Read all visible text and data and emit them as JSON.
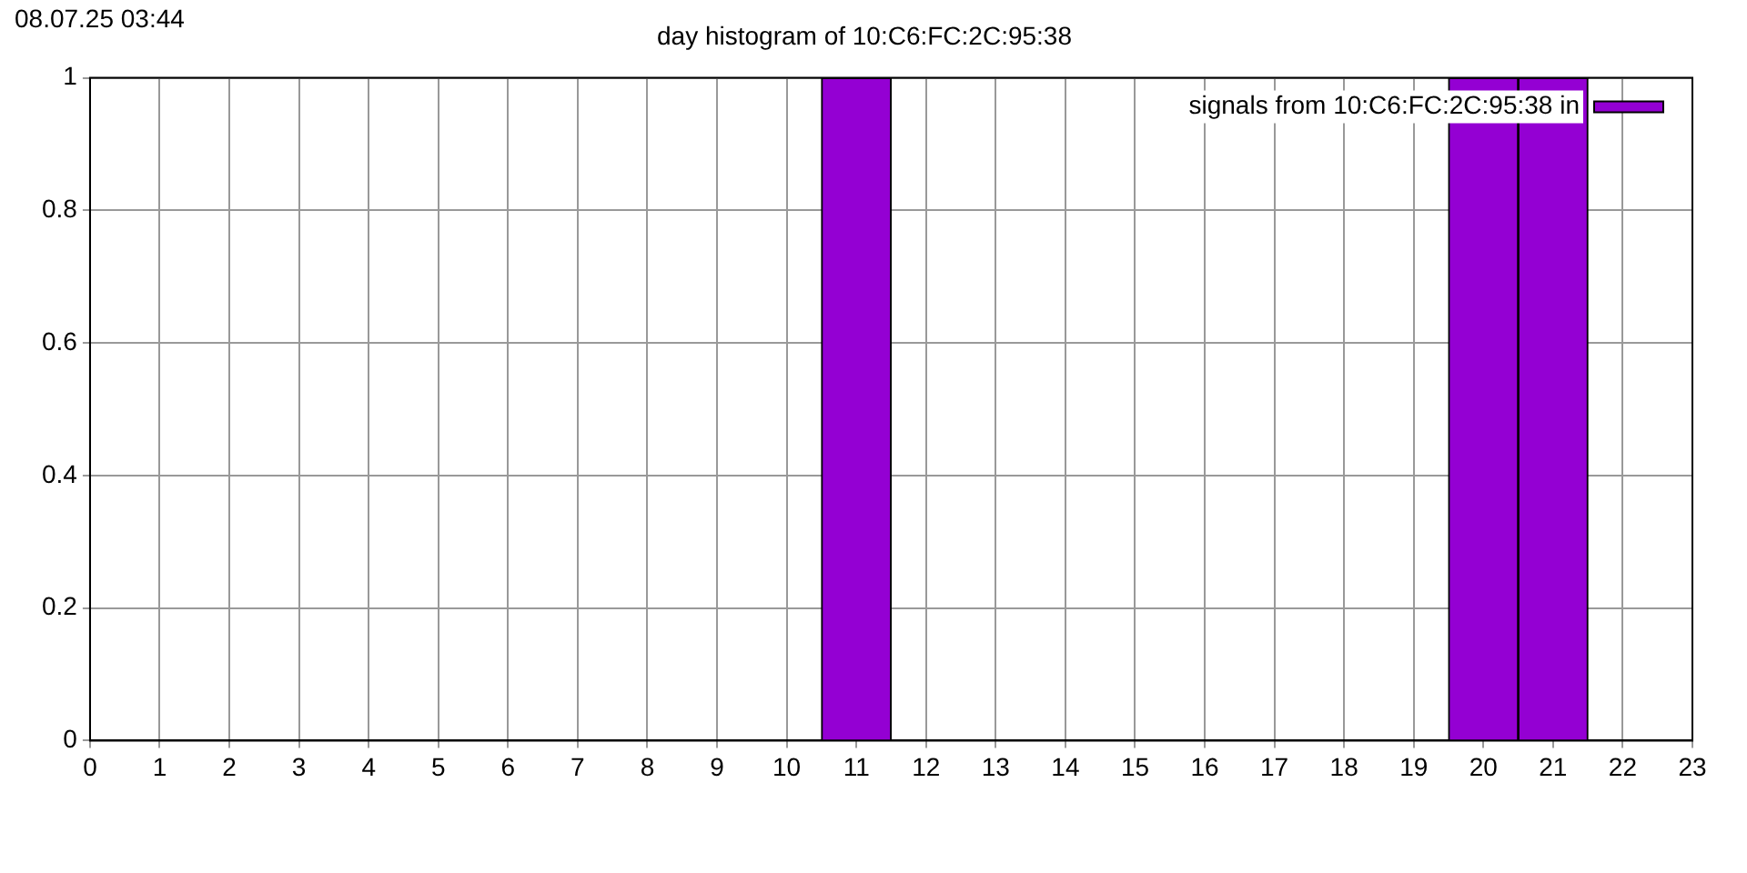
{
  "chart_data": {
    "type": "bar",
    "title": "day histogram of 10:C6:FC:2C:95:38",
    "annotations": [
      "08.07.25 03:44"
    ],
    "x": [
      11,
      20,
      21
    ],
    "series": [
      {
        "name": "signals from 10:C6:FC:2C:95:38 in",
        "color": "#9400d3",
        "values": [
          1,
          1,
          1
        ]
      }
    ],
    "xlim": [
      0,
      23
    ],
    "xticks": [
      0,
      1,
      2,
      3,
      4,
      5,
      6,
      7,
      8,
      9,
      10,
      11,
      12,
      13,
      14,
      15,
      16,
      17,
      18,
      19,
      20,
      21,
      22,
      23
    ],
    "ylim": [
      0,
      1
    ],
    "yticks": [
      0,
      0.2,
      0.4,
      0.6,
      0.8,
      1
    ],
    "grid": true,
    "legend": "top right"
  }
}
